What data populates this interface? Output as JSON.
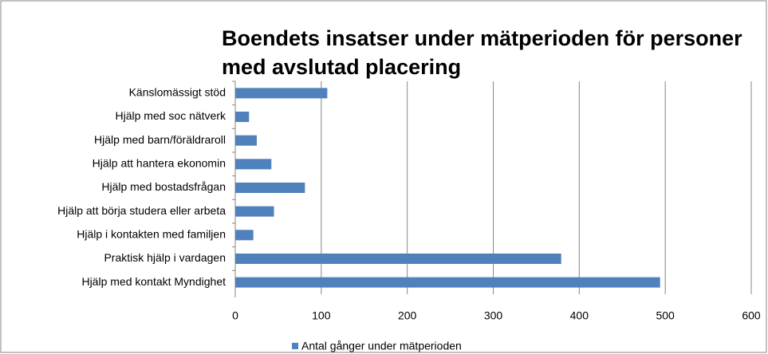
{
  "chart_data": {
    "type": "bar",
    "orientation": "horizontal",
    "title": [
      "Boendets insatser under mätperioden för personer",
      "med avslutad placering"
    ],
    "categories": [
      "Känslomässigt stöd",
      "Hjälp med soc nätverk",
      "Hjälp med barn/föräldraroll",
      "Hjälp att hantera ekonomin",
      "Hjälp med bostadsfrågan",
      "Hjälp att börja studera eller arbeta",
      "Hjälp i kontakten med familjen",
      "Praktisk hjälp i vardagen",
      "Hjälp med kontakt Myndighet"
    ],
    "series": [
      {
        "name": "Antal gånger under mätperioden",
        "color": "#4f81bd",
        "values": [
          107,
          16,
          25,
          42,
          81,
          45,
          21,
          379,
          494
        ]
      }
    ],
    "xlim": [
      0,
      600
    ],
    "xticks": [
      0,
      100,
      200,
      300,
      400,
      500,
      600
    ],
    "grid": true,
    "legend": "bottom"
  }
}
